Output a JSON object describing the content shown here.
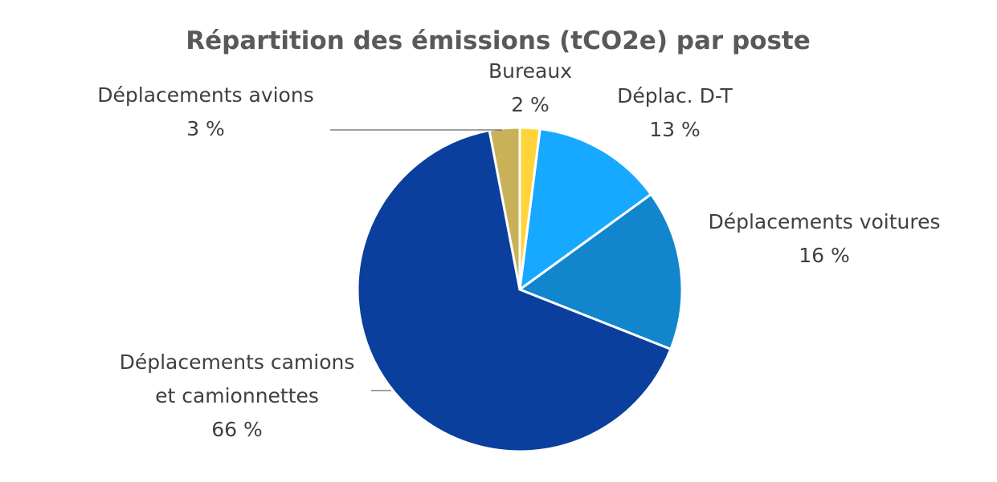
{
  "chart_data": {
    "type": "pie",
    "title": "Répartition des émissions (tCO2e) par poste",
    "slices": [
      {
        "label_lines": [
          "Bureaux"
        ],
        "value": 2,
        "value_label": "2 %",
        "color": "#FFD43B"
      },
      {
        "label_lines": [
          "Déplac. D-T"
        ],
        "value": 13,
        "value_label": "13 %",
        "color": "#17A9FF"
      },
      {
        "label_lines": [
          "Déplacements voitures"
        ],
        "value": 16,
        "value_label": "16 %",
        "color": "#1186CC"
      },
      {
        "label_lines": [
          "Déplacements camions",
          "et camionnettes"
        ],
        "value": 66,
        "value_label": "66 %",
        "color": "#0A3F9E"
      },
      {
        "label_lines": [
          "Déplacements avions"
        ],
        "value": 3,
        "value_label": "3 %",
        "color": "#C9B15A"
      }
    ],
    "legend": "none"
  }
}
